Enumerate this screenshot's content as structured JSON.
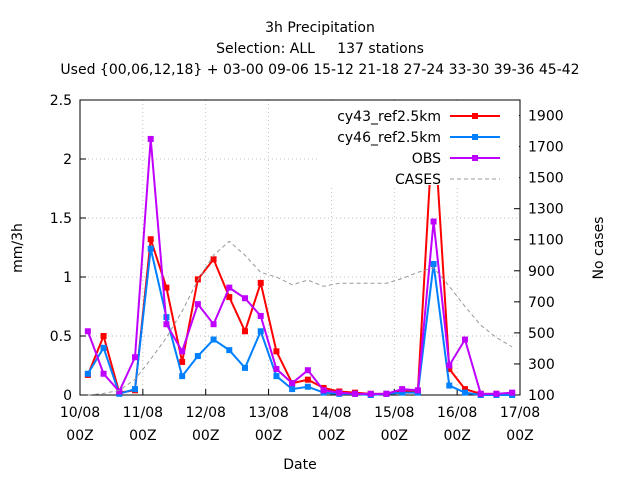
{
  "chart_data": {
    "type": "line",
    "title": "3h Precipitation",
    "subtitle": "Selection: ALL     137 stations",
    "subtitle2": "Used {00,06,12,18} + 03-00 09-06 15-12 21-18 27-24 33-30 39-36 45-42",
    "xlabel": "Date",
    "ylabel": "mm/3h",
    "y2label": "No cases",
    "ylim": [
      0,
      2.5
    ],
    "y2lim": [
      100,
      2000
    ],
    "xlim": [
      0,
      168
    ],
    "xticks": [
      {
        "x": 0,
        "line1": "10/08",
        "line2": "00Z"
      },
      {
        "x": 24,
        "line1": "11/08",
        "line2": "00Z"
      },
      {
        "x": 48,
        "line1": "12/08",
        "line2": "00Z"
      },
      {
        "x": 72,
        "line1": "13/08",
        "line2": "00Z"
      },
      {
        "x": 96,
        "line1": "14/08",
        "line2": "00Z"
      },
      {
        "x": 120,
        "line1": "15/08",
        "line2": "00Z"
      },
      {
        "x": 144,
        "line1": "16/08",
        "line2": "00Z"
      },
      {
        "x": 168,
        "line1": "17/08",
        "line2": "00Z"
      }
    ],
    "yticks": [
      "0",
      "0.5",
      "1",
      "1.5",
      "2",
      "2.5"
    ],
    "y2ticks": [
      "100",
      "300",
      "500",
      "700",
      "900",
      "1100",
      "1300",
      "1500",
      "1700",
      "1900"
    ],
    "grid": true,
    "legend_position": "top-right",
    "x": [
      3,
      9,
      15,
      21,
      27,
      33,
      39,
      45,
      51,
      57,
      63,
      69,
      75,
      81,
      87,
      93,
      99,
      105,
      111,
      117,
      123,
      129,
      135,
      141,
      147,
      153,
      159,
      165
    ],
    "series": [
      {
        "name": "cy43_ref2.5km",
        "color": "#ff0000",
        "axis": "y",
        "values": [
          0.17,
          0.5,
          0.02,
          0.04,
          1.32,
          0.91,
          0.28,
          0.98,
          1.15,
          0.83,
          0.54,
          0.95,
          0.37,
          0.1,
          0.13,
          0.06,
          0.03,
          0.02,
          0.01,
          0.01,
          0.03,
          0.03,
          2.38,
          0.22,
          0.05,
          0.01,
          0.01,
          0.01
        ]
      },
      {
        "name": "cy46_ref2.5km",
        "color": "#0080ff",
        "axis": "y",
        "values": [
          0.18,
          0.4,
          0.01,
          0.05,
          1.24,
          0.66,
          0.16,
          0.33,
          0.47,
          0.38,
          0.23,
          0.54,
          0.16,
          0.05,
          0.07,
          0.02,
          0.01,
          0.01,
          0.0,
          0.01,
          0.02,
          0.02,
          1.11,
          0.08,
          0.02,
          0.0,
          0.0,
          0.0
        ]
      },
      {
        "name": "OBS",
        "color": "#bf00ff",
        "axis": "y",
        "values": [
          0.54,
          0.18,
          0.03,
          0.32,
          2.17,
          0.6,
          0.37,
          0.77,
          0.6,
          0.91,
          0.82,
          0.67,
          0.22,
          0.1,
          0.21,
          0.04,
          0.02,
          0.01,
          0.01,
          0.01,
          0.05,
          0.04,
          1.47,
          0.25,
          0.47,
          0.01,
          0.01,
          0.02
        ]
      },
      {
        "name": "CASES",
        "color": "#999999",
        "axis": "y2",
        "dashed": true,
        "values": [
          100,
          110,
          130,
          200,
          330,
          470,
          640,
          840,
          1000,
          1090,
          1000,
          890,
          860,
          810,
          840,
          800,
          820,
          820,
          820,
          820,
          850,
          890,
          920,
          800,
          670,
          550,
          470,
          410
        ]
      }
    ]
  }
}
